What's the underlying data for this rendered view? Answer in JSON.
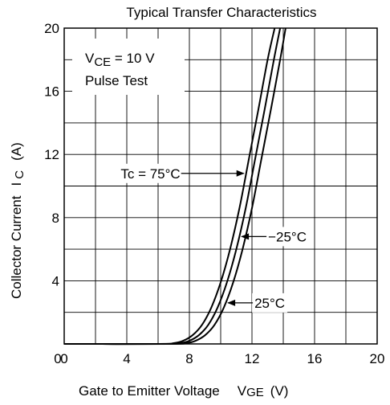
{
  "chart_data": {
    "type": "line",
    "title": "Typical Transfer Characteristics",
    "xlabel": {
      "main": "Gate to Emitter Voltage",
      "symbol": "V",
      "subscript": "GE",
      "unit": "(V)"
    },
    "ylabel": {
      "main": "Collector Current",
      "symbol": "I",
      "subscript": "C",
      "unit": "(A)"
    },
    "xlim": [
      0,
      20
    ],
    "ylim": [
      0,
      20
    ],
    "x_ticks": [
      0,
      4,
      8,
      12,
      16,
      20
    ],
    "y_ticks": [
      4,
      8,
      12,
      16,
      20
    ],
    "grid": true,
    "conditions": {
      "vce_prefix": "V",
      "vce_sub": "CE",
      "vce_value": " = 10 V",
      "pulse": "Pulse Test"
    },
    "series": [
      {
        "name": "Tc = 75°C",
        "x": [
          0,
          6.0,
          7.0,
          7.6,
          8.2,
          8.8,
          9.4,
          10.0,
          10.6,
          11.2,
          11.8,
          12.4,
          13.0,
          13.45
        ],
        "y": [
          0,
          0.0,
          0.05,
          0.2,
          0.55,
          1.2,
          2.3,
          3.9,
          6.0,
          8.6,
          11.7,
          14.8,
          18.0,
          20.0
        ]
      },
      {
        "name": "−25°C",
        "x": [
          0,
          6.4,
          7.4,
          8.0,
          8.6,
          9.2,
          9.8,
          10.4,
          11.0,
          11.6,
          12.2,
          12.8,
          13.4,
          13.8
        ],
        "y": [
          0,
          0.0,
          0.05,
          0.2,
          0.55,
          1.2,
          2.3,
          3.9,
          6.0,
          8.6,
          11.7,
          14.8,
          18.0,
          20.0
        ]
      },
      {
        "name": "25°C",
        "x": [
          0,
          6.8,
          7.8,
          8.4,
          9.0,
          9.6,
          10.2,
          10.8,
          11.4,
          12.0,
          12.6,
          13.2,
          13.8,
          14.15
        ],
        "y": [
          0,
          0.0,
          0.05,
          0.2,
          0.55,
          1.2,
          2.3,
          3.9,
          6.0,
          8.6,
          11.7,
          14.8,
          18.0,
          20.0
        ]
      }
    ],
    "annotations": [
      {
        "text": "Tc = 75°C",
        "series": 0,
        "at_y": 10.8,
        "side": "left"
      },
      {
        "text": "−25°C",
        "series": 1,
        "at_y": 6.8,
        "side": "right"
      },
      {
        "text": "25°C",
        "series": 2,
        "at_y": 2.6,
        "side": "right"
      }
    ]
  }
}
